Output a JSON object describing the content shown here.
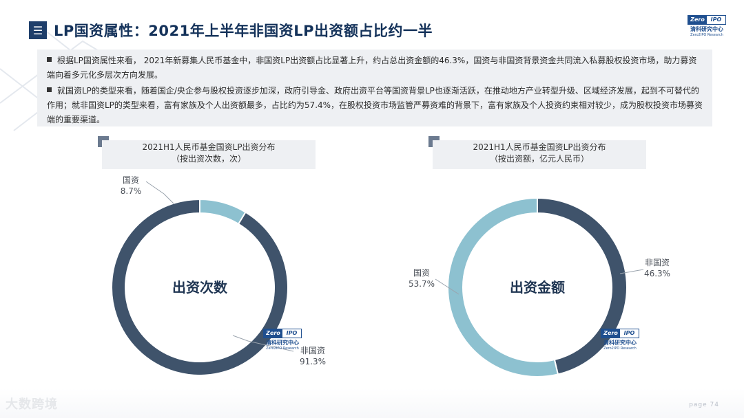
{
  "header": {
    "icon": "menu-icon",
    "title": "LP国资属性：2021年上半年非国资LP出资额占比约一半"
  },
  "logo": {
    "badge_left": "Zero",
    "badge_right": "IPO",
    "name_cn": "清科研究中心",
    "name_en": "Zero2IPO Research"
  },
  "summary": {
    "bullet1": "根据LP国资属性来看， 2021年新募集人民币基金中，非国资LP出资额占比显著上升，约占总出资金额的46.3%，国资与非国资背景资金共同流入私募股权投资市场，助力募资端向着多元化多层次方向发展。",
    "bullet2": "就国资LP的类型来看，随着国企/央企参与股权投资逐步加深，政府引导金、政府出资平台等国资背景LP也逐渐活跃，在推动地方产业转型升级、区域经济发展，起到不可替代的作用；就非国资LP的类型来看，富有家族及个人出资额最多，占比约为57.4%，在股权投资市场监管严募资难的背景下，富有家族及个人投资约束相对较少，成为股权投资市场募资端的重要渠道。"
  },
  "colors": {
    "dark": "#3f536b",
    "light": "#8dc1d0",
    "title": "#14325a"
  },
  "chart_data": [
    {
      "type": "pie",
      "title": "2021H1人民币基金国资LP出资分布",
      "subtitle": "（按出资次数，次）",
      "center_label": "出资次数",
      "slices": [
        {
          "name": "国资",
          "value": 8.7,
          "label": "8.7%",
          "color": "#8dc1d0"
        },
        {
          "name": "非国资",
          "value": 91.3,
          "label": "91.3%",
          "color": "#3f536b"
        }
      ]
    },
    {
      "type": "pie",
      "title": "2021H1人民币基金国资LP出资分布",
      "subtitle": "（按出资额，亿元人民币）",
      "center_label": "出资金额",
      "slices": [
        {
          "name": "非国资",
          "value": 46.3,
          "label": "46.3%",
          "color": "#3f536b"
        },
        {
          "name": "国资",
          "value": 53.7,
          "label": "53.7%",
          "color": "#8dc1d0"
        }
      ]
    }
  ],
  "footer": {
    "watermark": "大数跨境",
    "page": "page  74"
  }
}
